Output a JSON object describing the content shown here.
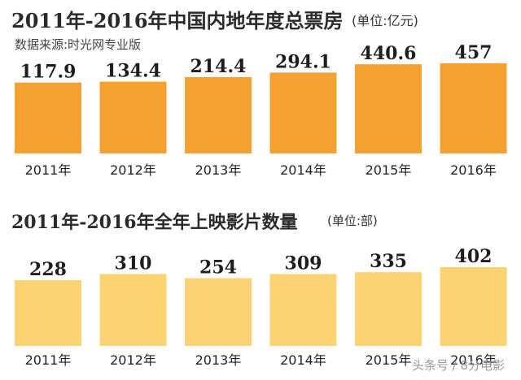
{
  "chart_data": [
    {
      "type": "bar",
      "title": "2011年-2016年中国内地年度总票房",
      "unit": "(单位:亿元)",
      "source": "数据来源:时光网专业版",
      "categories": [
        "2011年",
        "2012年",
        "2013年",
        "2014年",
        "2015年",
        "2016年"
      ],
      "value_labels": [
        "117.9",
        "134.4",
        "214.4",
        "294.1",
        "440.6",
        "457"
      ],
      "values": [
        117.9,
        134.4,
        214.4,
        294.1,
        440.6,
        457
      ],
      "color": "#f5a132"
    },
    {
      "type": "bar",
      "title": "2011年-2016年全年上映影片数量",
      "unit": "(单位:部)",
      "categories": [
        "2011年",
        "2012年",
        "2013年",
        "2014年",
        "2015年",
        "2016年"
      ],
      "value_labels": [
        "228",
        "310",
        "254",
        "309",
        "335",
        "402"
      ],
      "values": [
        228,
        310,
        254,
        309,
        335,
        402
      ],
      "color": "#fcd373"
    }
  ],
  "watermark": "头条号 / 8分电影"
}
